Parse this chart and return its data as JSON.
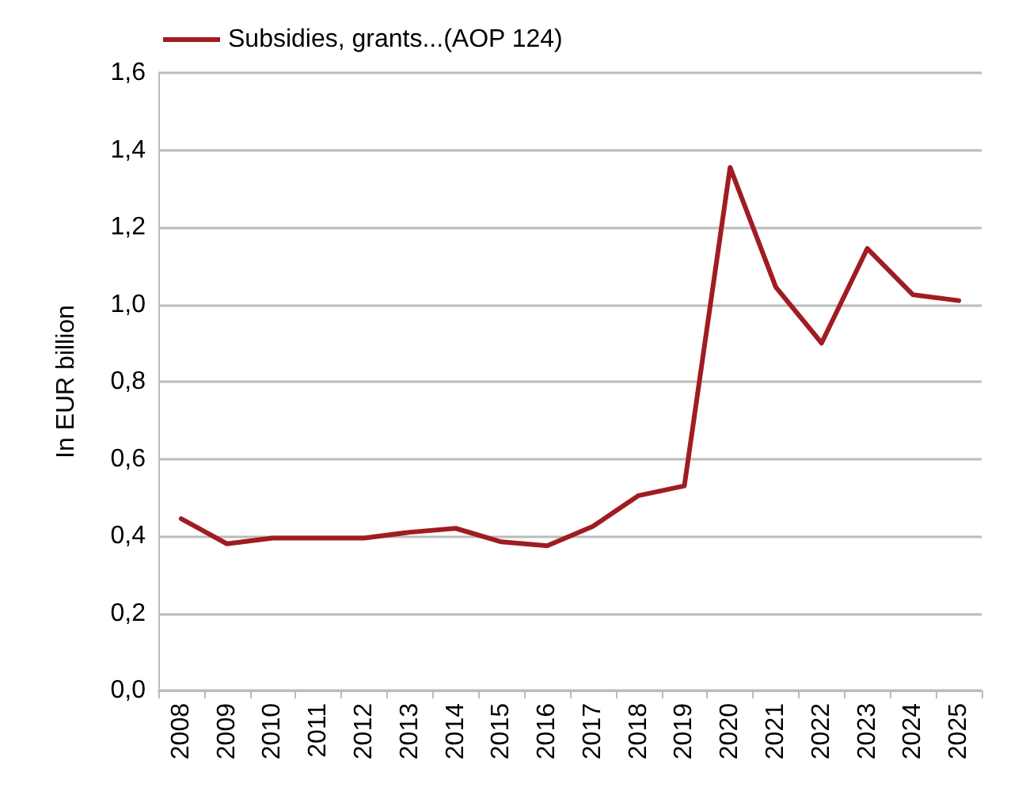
{
  "chart_data": {
    "type": "line",
    "ylabel": "In EUR billion",
    "categories": [
      "2008",
      "2009",
      "2010",
      "2011",
      "2012",
      "2013",
      "2014",
      "2015",
      "2016",
      "2017",
      "2018",
      "2019",
      "2020",
      "2021",
      "2022",
      "2023",
      "2024",
      "2025"
    ],
    "series": [
      {
        "name": "Subsidies, grants...(AOP 124)",
        "color": "#a01c22",
        "values": [
          0.445,
          0.38,
          0.395,
          0.395,
          0.395,
          0.41,
          0.42,
          0.385,
          0.375,
          0.425,
          0.505,
          0.53,
          1.355,
          1.045,
          0.9,
          1.145,
          1.025,
          1.01
        ]
      }
    ],
    "ylim": [
      0,
      1.6
    ],
    "yticks": [
      {
        "value": 0,
        "label": "0,0"
      },
      {
        "value": 0.2,
        "label": "0,2"
      },
      {
        "value": 0.4,
        "label": "0,4"
      },
      {
        "value": 0.6,
        "label": "0,6"
      },
      {
        "value": 0.8,
        "label": "0,8"
      },
      {
        "value": 1.0,
        "label": "1,0"
      },
      {
        "value": 1.2,
        "label": "1,2"
      },
      {
        "value": 1.4,
        "label": "1,4"
      },
      {
        "value": 1.6,
        "label": "1,6"
      }
    ],
    "grid": "y",
    "legend": "top left",
    "marker": "none",
    "line_style": "solid"
  }
}
